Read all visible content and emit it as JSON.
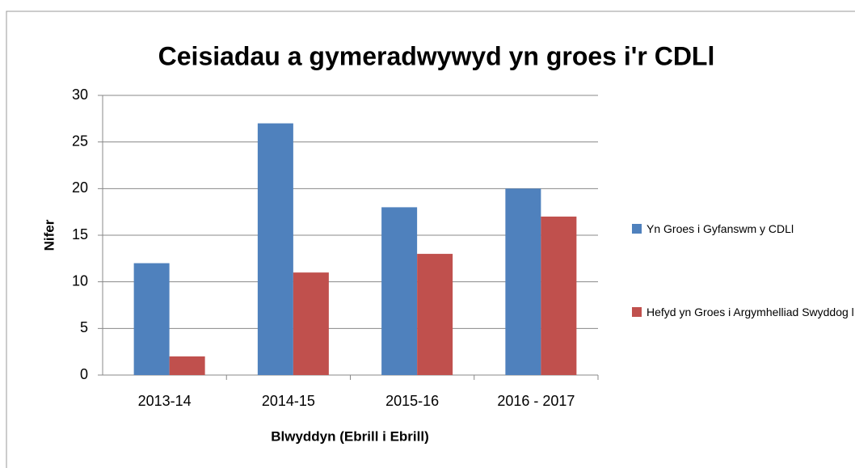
{
  "chart_data": {
    "type": "bar",
    "title": "Ceisiadau a gymeradwywyd yn groes i'r CDLl",
    "x_label": "Blwyddyn (Ebrill i Ebrill)",
    "y_label": "Nifer",
    "categories": [
      "2013-14",
      "2014-15",
      "2015-16",
      "2016 - 2017"
    ],
    "series": [
      {
        "name": "Yn Groes i Gyfanswm y  CDLl",
        "color": "#4f81bd",
        "values": [
          12,
          27,
          18,
          20
        ]
      },
      {
        "name": "Hefyd yn Groes i Argymhelliad Swyddog l",
        "color": "#c0504d",
        "values": [
          2,
          11,
          13,
          17
        ]
      }
    ],
    "ylim": [
      0,
      30
    ],
    "yticks": [
      0,
      5,
      10,
      15,
      20,
      25,
      30
    ],
    "grid": true,
    "legend": "right"
  }
}
